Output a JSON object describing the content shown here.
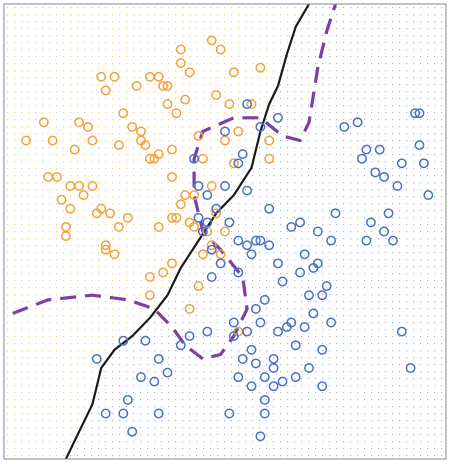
{
  "chart_data": {
    "type": "scatter",
    "title": "",
    "xlabel": "",
    "ylabel": "",
    "xlim": [
      0,
      1
    ],
    "ylim": [
      0,
      1
    ],
    "grid": false,
    "legend": "none",
    "colors": {
      "orange": "#f2a13a",
      "blue": "#4a6fc9",
      "boundary_black": "#1a1a1a",
      "boundary_purple": "#7b3fa6",
      "frame": "#9a9a9a",
      "grid_orange": "#f6c98f",
      "grid_blue": "#9fb4e6"
    },
    "series": [
      {
        "class": "orange",
        "points": [
          [
            0.05,
            0.7
          ],
          [
            0.09,
            0.74
          ],
          [
            0.1,
            0.62
          ],
          [
            0.11,
            0.7
          ],
          [
            0.12,
            0.62
          ],
          [
            0.13,
            0.57
          ],
          [
            0.14,
            0.51
          ],
          [
            0.14,
            0.49
          ],
          [
            0.15,
            0.6
          ],
          [
            0.15,
            0.55
          ],
          [
            0.16,
            0.68
          ],
          [
            0.17,
            0.74
          ],
          [
            0.17,
            0.6
          ],
          [
            0.18,
            0.58
          ],
          [
            0.19,
            0.73
          ],
          [
            0.2,
            0.7
          ],
          [
            0.2,
            0.6
          ],
          [
            0.21,
            0.54
          ],
          [
            0.22,
            0.84
          ],
          [
            0.22,
            0.55
          ],
          [
            0.23,
            0.81
          ],
          [
            0.23,
            0.46
          ],
          [
            0.23,
            0.47
          ],
          [
            0.24,
            0.54
          ],
          [
            0.25,
            0.84
          ],
          [
            0.25,
            0.45
          ],
          [
            0.26,
            0.69
          ],
          [
            0.26,
            0.51
          ],
          [
            0.27,
            0.76
          ],
          [
            0.28,
            0.53
          ],
          [
            0.29,
            0.73
          ],
          [
            0.3,
            0.82
          ],
          [
            0.31,
            0.7
          ],
          [
            0.31,
            0.72
          ],
          [
            0.32,
            0.69
          ],
          [
            0.33,
            0.84
          ],
          [
            0.33,
            0.66
          ],
          [
            0.33,
            0.4
          ],
          [
            0.33,
            0.36
          ],
          [
            0.34,
            0.66
          ],
          [
            0.35,
            0.84
          ],
          [
            0.35,
            0.67
          ],
          [
            0.35,
            0.51
          ],
          [
            0.36,
            0.82
          ],
          [
            0.36,
            0.41
          ],
          [
            0.37,
            0.82
          ],
          [
            0.37,
            0.78
          ],
          [
            0.38,
            0.68
          ],
          [
            0.38,
            0.62
          ],
          [
            0.38,
            0.53
          ],
          [
            0.38,
            0.43
          ],
          [
            0.39,
            0.76
          ],
          [
            0.39,
            0.53
          ],
          [
            0.4,
            0.9
          ],
          [
            0.4,
            0.87
          ],
          [
            0.4,
            0.56
          ],
          [
            0.41,
            0.79
          ],
          [
            0.41,
            0.58
          ],
          [
            0.42,
            0.85
          ],
          [
            0.42,
            0.52
          ],
          [
            0.42,
            0.33
          ],
          [
            0.43,
            0.58
          ],
          [
            0.43,
            0.51
          ],
          [
            0.44,
            0.71
          ],
          [
            0.44,
            0.6
          ],
          [
            0.44,
            0.38
          ],
          [
            0.45,
            0.66
          ],
          [
            0.45,
            0.45
          ],
          [
            0.46,
            0.5
          ],
          [
            0.47,
            0.92
          ],
          [
            0.47,
            0.6
          ],
          [
            0.47,
            0.47
          ],
          [
            0.48,
            0.8
          ],
          [
            0.48,
            0.54
          ],
          [
            0.49,
            0.9
          ],
          [
            0.49,
            0.45
          ],
          [
            0.5,
            0.7
          ],
          [
            0.5,
            0.5
          ],
          [
            0.51,
            0.78
          ],
          [
            0.52,
            0.85
          ],
          [
            0.52,
            0.65
          ],
          [
            0.53,
            0.72
          ],
          [
            0.53,
            0.28
          ],
          [
            0.55,
            0.28
          ],
          [
            0.56,
            0.78
          ],
          [
            0.58,
            0.86
          ],
          [
            0.6,
            0.7
          ],
          [
            0.6,
            0.66
          ]
        ]
      },
      {
        "class": "blue",
        "points": [
          [
            0.21,
            0.22
          ],
          [
            0.23,
            0.1
          ],
          [
            0.27,
            0.26
          ],
          [
            0.27,
            0.1
          ],
          [
            0.28,
            0.13
          ],
          [
            0.29,
            0.06
          ],
          [
            0.31,
            0.18
          ],
          [
            0.32,
            0.26
          ],
          [
            0.34,
            0.17
          ],
          [
            0.35,
            0.1
          ],
          [
            0.35,
            0.22
          ],
          [
            0.37,
            0.19
          ],
          [
            0.4,
            0.25
          ],
          [
            0.42,
            0.27
          ],
          [
            0.43,
            0.66
          ],
          [
            0.44,
            0.53
          ],
          [
            0.44,
            0.6
          ],
          [
            0.45,
            0.5
          ],
          [
            0.46,
            0.58
          ],
          [
            0.46,
            0.28
          ],
          [
            0.46,
            0.52
          ],
          [
            0.47,
            0.46
          ],
          [
            0.47,
            0.4
          ],
          [
            0.48,
            0.55
          ],
          [
            0.49,
            0.43
          ],
          [
            0.5,
            0.6
          ],
          [
            0.5,
            0.72
          ],
          [
            0.51,
            0.52
          ],
          [
            0.51,
            0.1
          ],
          [
            0.52,
            0.3
          ],
          [
            0.52,
            0.27
          ],
          [
            0.53,
            0.65
          ],
          [
            0.53,
            0.48
          ],
          [
            0.53,
            0.41
          ],
          [
            0.53,
            0.18
          ],
          [
            0.54,
            0.67
          ],
          [
            0.54,
            0.22
          ],
          [
            0.55,
            0.78
          ],
          [
            0.55,
            0.59
          ],
          [
            0.55,
            0.47
          ],
          [
            0.55,
            0.28
          ],
          [
            0.56,
            0.45
          ],
          [
            0.56,
            0.24
          ],
          [
            0.56,
            0.16
          ],
          [
            0.57,
            0.48
          ],
          [
            0.57,
            0.33
          ],
          [
            0.57,
            0.21
          ],
          [
            0.58,
            0.73
          ],
          [
            0.58,
            0.48
          ],
          [
            0.58,
            0.3
          ],
          [
            0.58,
            0.05
          ],
          [
            0.59,
            0.35
          ],
          [
            0.59,
            0.18
          ],
          [
            0.59,
            0.13
          ],
          [
            0.59,
            0.1
          ],
          [
            0.6,
            0.55
          ],
          [
            0.6,
            0.47
          ],
          [
            0.61,
            0.22
          ],
          [
            0.61,
            0.2
          ],
          [
            0.61,
            0.16
          ],
          [
            0.62,
            0.75
          ],
          [
            0.62,
            0.43
          ],
          [
            0.62,
            0.28
          ],
          [
            0.63,
            0.39
          ],
          [
            0.63,
            0.17
          ],
          [
            0.64,
            0.29
          ],
          [
            0.65,
            0.51
          ],
          [
            0.65,
            0.3
          ],
          [
            0.66,
            0.25
          ],
          [
            0.66,
            0.18
          ],
          [
            0.67,
            0.52
          ],
          [
            0.67,
            0.41
          ],
          [
            0.68,
            0.45
          ],
          [
            0.68,
            0.29
          ],
          [
            0.69,
            0.36
          ],
          [
            0.69,
            0.2
          ],
          [
            0.7,
            0.42
          ],
          [
            0.7,
            0.32
          ],
          [
            0.71,
            0.5
          ],
          [
            0.71,
            0.43
          ],
          [
            0.72,
            0.36
          ],
          [
            0.72,
            0.24
          ],
          [
            0.72,
            0.16
          ],
          [
            0.73,
            0.38
          ],
          [
            0.74,
            0.48
          ],
          [
            0.74,
            0.3
          ],
          [
            0.75,
            0.54
          ],
          [
            0.77,
            0.73
          ],
          [
            0.8,
            0.74
          ],
          [
            0.81,
            0.66
          ],
          [
            0.82,
            0.48
          ],
          [
            0.82,
            0.68
          ],
          [
            0.83,
            0.52
          ],
          [
            0.84,
            0.63
          ],
          [
            0.85,
            0.68
          ],
          [
            0.86,
            0.5
          ],
          [
            0.86,
            0.62
          ],
          [
            0.87,
            0.54
          ],
          [
            0.88,
            0.48
          ],
          [
            0.89,
            0.6
          ],
          [
            0.9,
            0.65
          ],
          [
            0.9,
            0.28
          ],
          [
            0.92,
            0.2
          ],
          [
            0.93,
            0.76
          ],
          [
            0.94,
            0.76
          ],
          [
            0.94,
            0.69
          ],
          [
            0.95,
            0.65
          ],
          [
            0.96,
            0.58
          ]
        ]
      }
    ],
    "boundaries": [
      {
        "name": "",
        "style": "solid",
        "points": [
          [
            0.14,
            0.0
          ],
          [
            0.17,
            0.06
          ],
          [
            0.2,
            0.12
          ],
          [
            0.22,
            0.2
          ],
          [
            0.25,
            0.24
          ],
          [
            0.29,
            0.27
          ],
          [
            0.33,
            0.31
          ],
          [
            0.37,
            0.36
          ],
          [
            0.4,
            0.42
          ],
          [
            0.44,
            0.48
          ],
          [
            0.48,
            0.54
          ],
          [
            0.52,
            0.58
          ],
          [
            0.56,
            0.64
          ],
          [
            0.58,
            0.72
          ],
          [
            0.6,
            0.78
          ],
          [
            0.62,
            0.82
          ],
          [
            0.64,
            0.89
          ],
          [
            0.66,
            0.95
          ],
          [
            0.69,
            1.0
          ]
        ]
      },
      {
        "name": "",
        "style": "dashed",
        "points": [
          [
            0.02,
            0.32
          ],
          [
            0.1,
            0.35
          ],
          [
            0.2,
            0.36
          ],
          [
            0.28,
            0.35
          ],
          [
            0.34,
            0.33
          ],
          [
            0.38,
            0.29
          ],
          [
            0.41,
            0.25
          ],
          [
            0.45,
            0.22
          ],
          [
            0.49,
            0.23
          ],
          [
            0.52,
            0.27
          ],
          [
            0.55,
            0.33
          ],
          [
            0.54,
            0.4
          ],
          [
            0.49,
            0.46
          ],
          [
            0.45,
            0.5
          ],
          [
            0.43,
            0.58
          ],
          [
            0.43,
            0.66
          ],
          [
            0.45,
            0.72
          ],
          [
            0.52,
            0.75
          ],
          [
            0.58,
            0.75
          ],
          [
            0.63,
            0.71
          ],
          [
            0.67,
            0.7
          ],
          [
            0.69,
            0.74
          ],
          [
            0.7,
            0.8
          ],
          [
            0.71,
            0.86
          ],
          [
            0.73,
            0.94
          ],
          [
            0.75,
            1.0
          ]
        ]
      }
    ]
  }
}
